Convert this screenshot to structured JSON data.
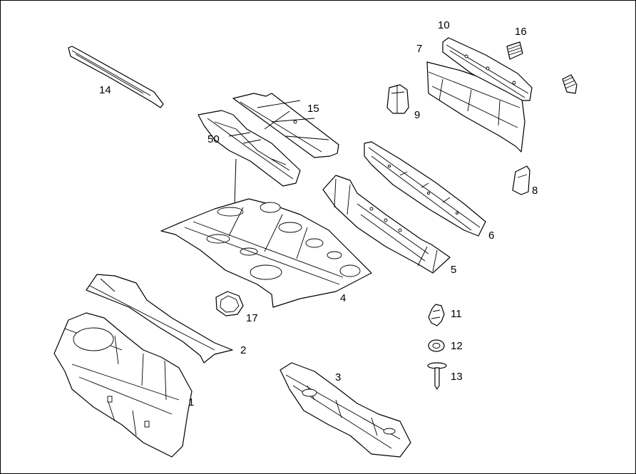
{
  "diagram": {
    "callouts": {
      "p1": "1",
      "p2": "2",
      "p3": "3",
      "p4": "4",
      "p5": "5",
      "p6": "6",
      "p7": "7",
      "p8": "8",
      "p9": "9",
      "p10": "10",
      "p11": "11",
      "p12": "12",
      "p13": "13",
      "p14": "14",
      "p15": "15",
      "p16": "16",
      "p17": "17",
      "p50": "50"
    },
    "colors": {
      "line": "#000000",
      "background": "#ffffff"
    }
  }
}
